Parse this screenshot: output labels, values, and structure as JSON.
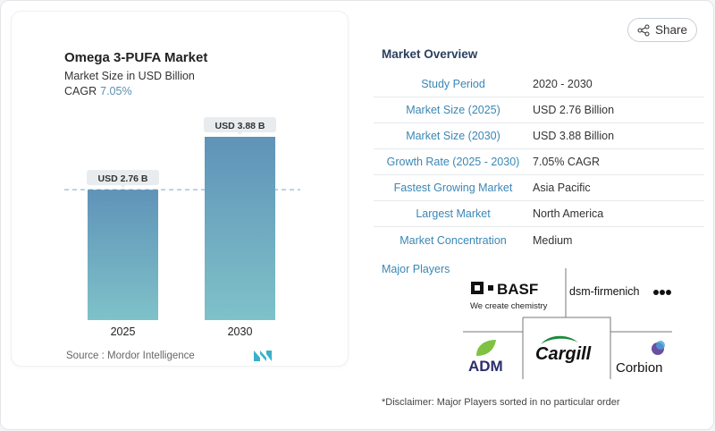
{
  "chart_data": {
    "type": "bar",
    "title": "Omega 3-PUFA Market",
    "subtitle": "Market Size in USD Billion",
    "cagr_label": "CAGR",
    "cagr_value": "7.05%",
    "categories": [
      "2025",
      "2030"
    ],
    "values": [
      2.76,
      3.88
    ],
    "data_labels": [
      "USD 2.76 B",
      "USD 3.88 B"
    ],
    "reference_line": 2.76,
    "colors": {
      "bar_top": "#5f93b8",
      "bar_bottom": "#7fc2c9",
      "label_bg": "#e8ecef",
      "dashed": "#7fa5bf"
    },
    "source": "Source :  Mordor Intelligence"
  },
  "share": {
    "label": "Share",
    "icon": "share-icon"
  },
  "overview": {
    "title": "Market Overview",
    "rows": [
      {
        "label": "Study Period",
        "value": "2020 - 2030"
      },
      {
        "label": "Market Size (2025)",
        "value": "USD 2.76 Billion"
      },
      {
        "label": "Market Size (2030)",
        "value": "USD 3.88 Billion"
      },
      {
        "label": "Growth Rate (2025 - 2030)",
        "value": "7.05% CAGR"
      },
      {
        "label": "Fastest Growing Market",
        "value": "Asia Pacific"
      },
      {
        "label": "Largest Market",
        "value": "North America"
      },
      {
        "label": "Market Concentration",
        "value": "Medium"
      }
    ]
  },
  "players": {
    "title": "Major Players",
    "logos": [
      "BASF",
      "We create chemistry",
      "dsm-firmenich",
      "ADM",
      "Cargill",
      "Corbion"
    ],
    "disclaimer": "*Disclaimer: Major Players sorted in no particular order"
  }
}
